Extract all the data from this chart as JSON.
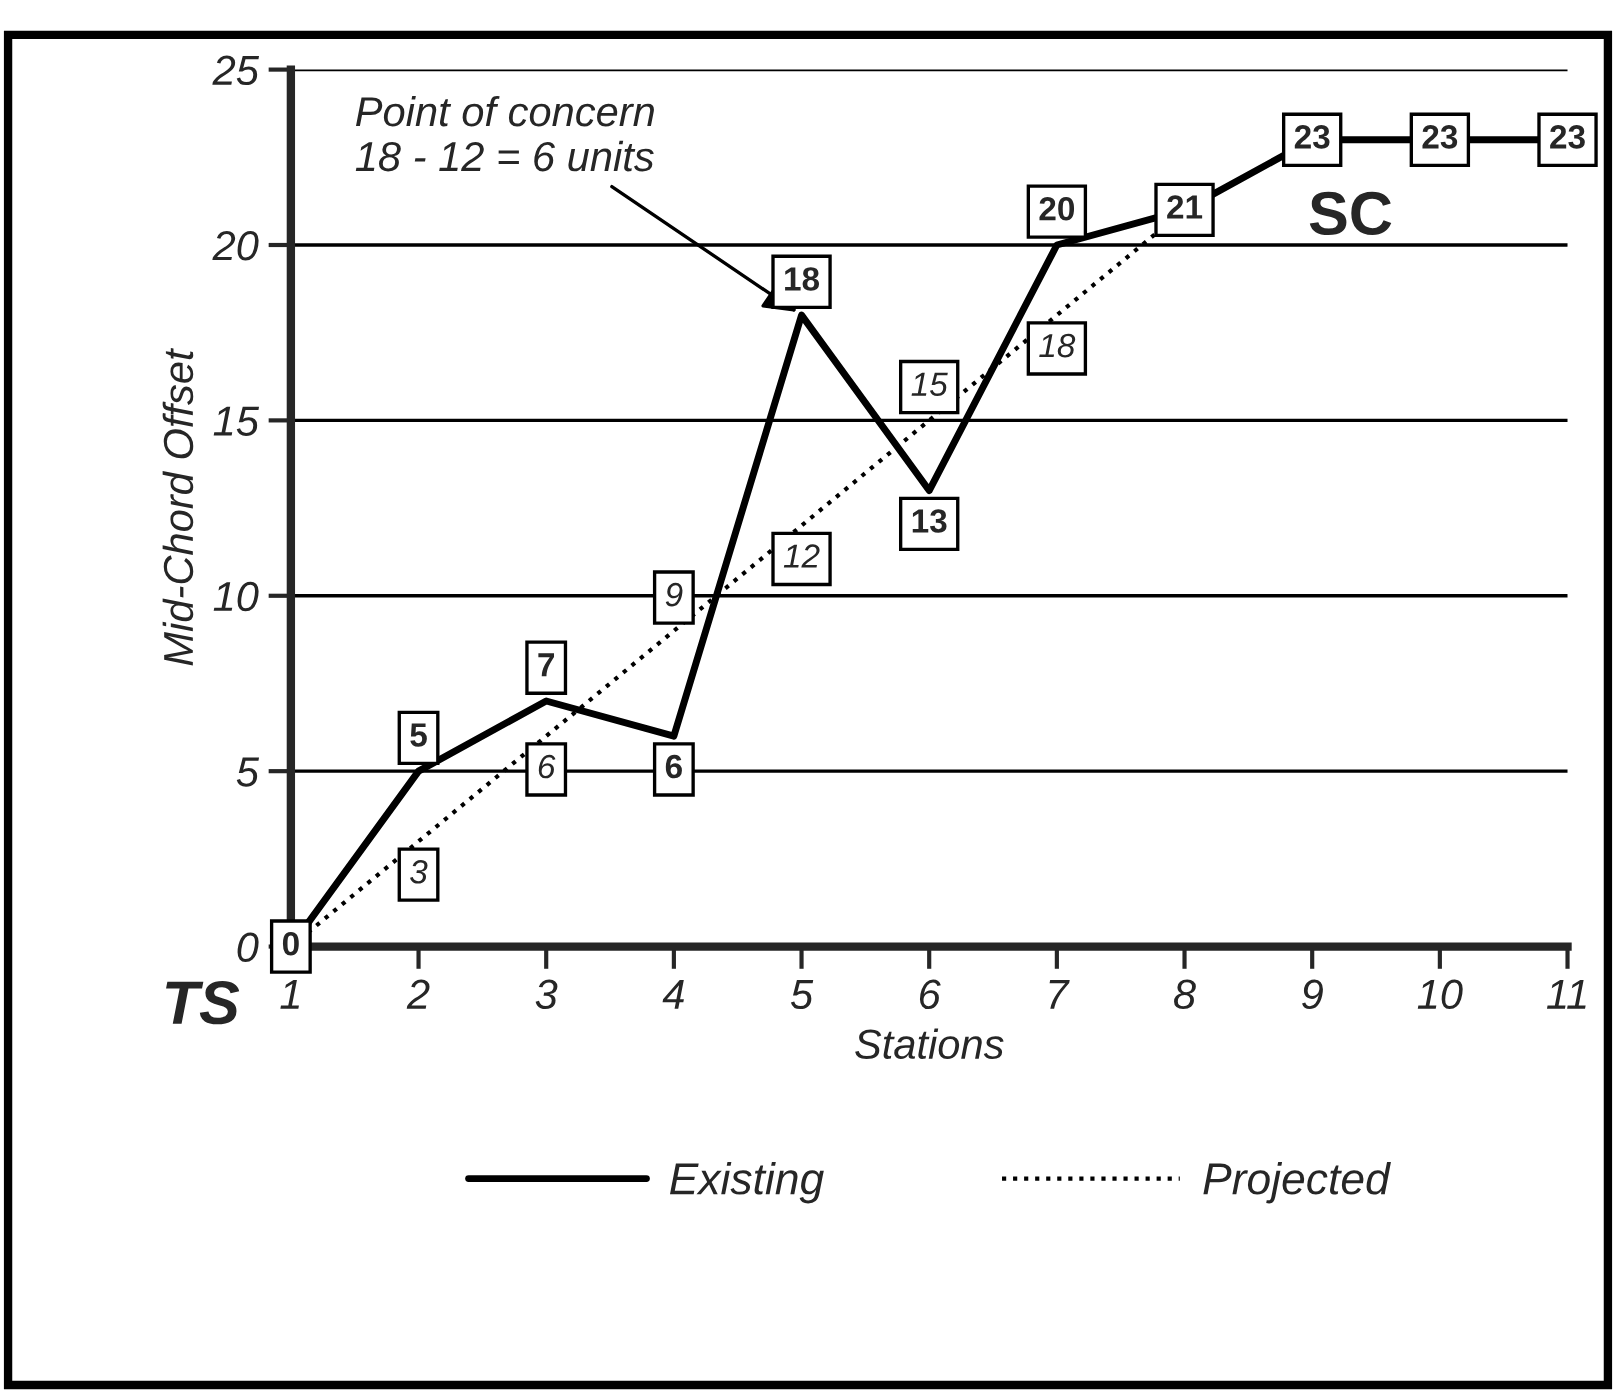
{
  "chart_data": {
    "type": "line",
    "xlabel": "Stations",
    "ylabel": "Mid-Chord Offset",
    "x": [
      1,
      2,
      3,
      4,
      5,
      6,
      7,
      8,
      9,
      10,
      11
    ],
    "series": [
      {
        "name": "Existing",
        "color": "#000000",
        "line_style": "solid",
        "values": [
          0,
          5,
          7,
          6,
          18,
          13,
          20,
          21,
          23,
          23,
          23
        ],
        "value_labels": [
          "0",
          "5",
          "7",
          "6",
          "18",
          "13",
          "20",
          "21",
          "23",
          "23",
          "23"
        ]
      },
      {
        "name": "Projected",
        "color": "#000000",
        "line_style": "dotted",
        "values": [
          0,
          3,
          6,
          9,
          12,
          15,
          18,
          21,
          23,
          23,
          23
        ],
        "value_labels": [
          null,
          "3",
          "6",
          "9",
          "12",
          "15",
          "18",
          null,
          null,
          null,
          null
        ]
      }
    ],
    "xlim": [
      1,
      11
    ],
    "ylim": [
      0,
      25
    ],
    "xticks": [
      1,
      2,
      3,
      4,
      5,
      6,
      7,
      8,
      9,
      10,
      11
    ],
    "yticks": [
      0,
      5,
      10,
      15,
      20,
      25
    ],
    "grid": "y",
    "legend": "bottom",
    "marker": "none",
    "annotations": [
      {
        "text": "Point of concern\n18 - 12 = 6 units",
        "x": 5,
        "y": 18
      },
      "TS",
      "SC"
    ]
  }
}
